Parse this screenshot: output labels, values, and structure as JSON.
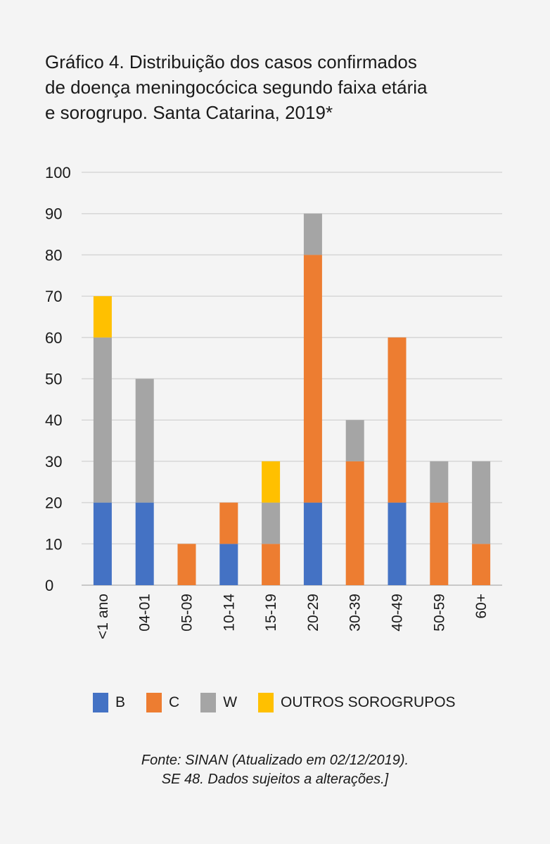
{
  "title_lines": [
    "Gráfico 4. Distribuição dos casos confirmados",
    "de doença meningocócica segundo faixa etária",
    "e sorogrupo. Santa Catarina, 2019*"
  ],
  "source_lines": [
    "Fonte: SINAN (Atualizado em 02/12/2019).",
    "SE 48. Dados sujeitos a alterações.]"
  ],
  "legend": [
    {
      "label": "B",
      "color": "#4472c4"
    },
    {
      "label": "C",
      "color": "#ed7d31"
    },
    {
      "label": "W",
      "color": "#a5a5a5"
    },
    {
      "label": "OUTROS SOROGRUPOS",
      "color": "#ffc000"
    }
  ],
  "chart_data": {
    "type": "bar",
    "stacked": true,
    "title": "Gráfico 4. Distribuição dos casos confirmados de doença meningocócica segundo faixa etária e sorogrupo. Santa Catarina, 2019*",
    "xlabel": "",
    "ylabel": "",
    "ylim": [
      0,
      100
    ],
    "yticks": [
      0,
      10,
      20,
      30,
      40,
      50,
      60,
      70,
      80,
      90,
      100
    ],
    "grid": true,
    "legend_position": "bottom",
    "categories": [
      "<1 ano",
      "04-01",
      "05-09",
      "10-14",
      "15-19",
      "20-29",
      "30-39",
      "40-49",
      "50-59",
      "60+"
    ],
    "series": [
      {
        "name": "B",
        "color": "#4472c4",
        "values": [
          20,
          20,
          0,
          10,
          0,
          20,
          0,
          20,
          0,
          0
        ]
      },
      {
        "name": "C",
        "color": "#ed7d31",
        "values": [
          0,
          0,
          10,
          10,
          10,
          60,
          30,
          40,
          20,
          10
        ]
      },
      {
        "name": "W",
        "color": "#a5a5a5",
        "values": [
          40,
          30,
          0,
          0,
          10,
          10,
          10,
          0,
          10,
          20
        ]
      },
      {
        "name": "OUTROS SOROGRUPOS",
        "color": "#ffc000",
        "values": [
          10,
          0,
          0,
          0,
          10,
          0,
          0,
          0,
          0,
          0
        ]
      }
    ]
  }
}
